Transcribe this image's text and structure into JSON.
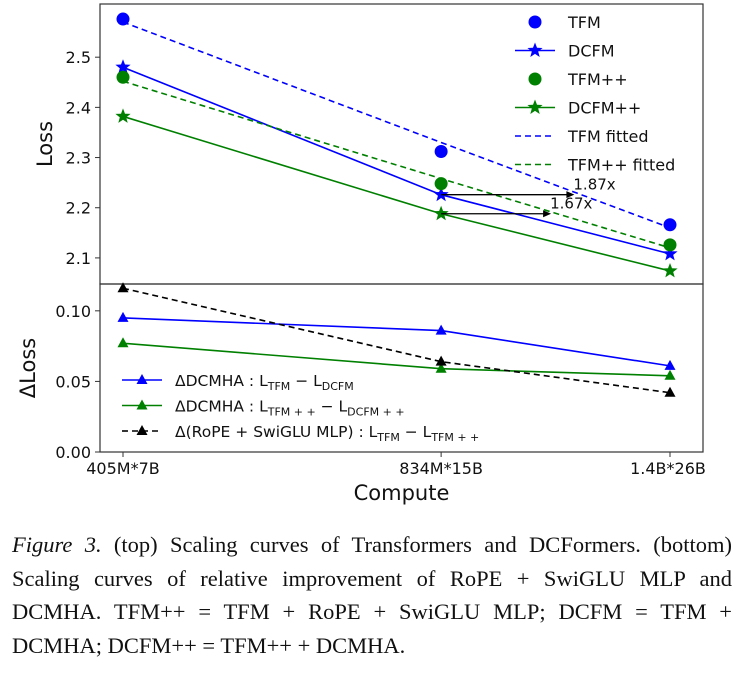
{
  "chart_data": [
    {
      "type": "line",
      "panel": "top",
      "ylabel": "Loss",
      "ylim": [
        2.048,
        2.606
      ],
      "yticks": [
        2.1,
        2.2,
        2.3,
        2.4,
        2.5
      ],
      "xscale": "log",
      "x": [
        2.835e+18,
        1.251e+19,
        3.64e+19
      ],
      "xticklabels": [
        "405M*7B",
        "834M*15B",
        "1.4B*26B"
      ],
      "legend": "top-right",
      "grid": false,
      "series": [
        {
          "name": "TFM",
          "color": "#0000ff",
          "marker": "circle",
          "line": "none",
          "values": [
            2.576,
            2.312,
            2.166
          ]
        },
        {
          "name": "DCFM",
          "color": "#0000ff",
          "marker": "star",
          "line": "solid",
          "values": [
            2.48,
            2.226,
            2.108
          ]
        },
        {
          "name": "TFM++",
          "color": "#008000",
          "marker": "circle",
          "line": "none",
          "values": [
            2.46,
            2.248,
            2.126
          ]
        },
        {
          "name": "DCFM++",
          "color": "#008000",
          "marker": "star",
          "line": "solid",
          "values": [
            2.382,
            2.188,
            2.074
          ]
        },
        {
          "name": "TFM fitted",
          "color": "#0000ff",
          "marker": "none",
          "line": "dashed",
          "values": [
            2.57,
            2.33,
            2.16
          ]
        },
        {
          "name": "TFM++ fitted",
          "color": "#008000",
          "marker": "none",
          "line": "dashed",
          "values": [
            2.452,
            2.258,
            2.12
          ]
        }
      ],
      "annotations": [
        {
          "text": "1.87x",
          "y": 2.226,
          "from_x": 1.251e+19,
          "to_x": 2.33e+19
        },
        {
          "text": "1.67x",
          "y": 2.188,
          "from_x": 1.251e+19,
          "to_x": 2.09e+19
        }
      ]
    },
    {
      "type": "line",
      "panel": "bottom",
      "ylabel": "ΔLoss",
      "xlabel": "Compute",
      "ylim": [
        0,
        0.119
      ],
      "yticks": [
        0.0,
        0.05,
        0.1
      ],
      "yticklabels": [
        "0.00",
        "0.05",
        "0.10"
      ],
      "xscale": "log",
      "x": [
        2.835e+18,
        1.251e+19,
        3.64e+19
      ],
      "xticklabels": [
        "405M*7B",
        "834M*15B",
        "1.4B*26B"
      ],
      "legend": "bottom-left",
      "grid": false,
      "series": [
        {
          "name": [
            "ΔDCMHA : L",
            "TFM",
            " − L",
            "DCFM"
          ],
          "color": "#0000ff",
          "marker": "triangle",
          "line": "solid",
          "values": [
            0.095,
            0.086,
            0.061
          ]
        },
        {
          "name": [
            "ΔDCMHA : L",
            "TFM + +",
            " − L",
            "DCFM + +"
          ],
          "color": "#008000",
          "marker": "triangle",
          "line": "solid",
          "values": [
            0.077,
            0.059,
            0.054
          ]
        },
        {
          "name": [
            "Δ(RoPE + SwiGLU MLP) : L",
            "TFM",
            " − L",
            "TFM + +"
          ],
          "color": "#000000",
          "marker": "triangle",
          "line": "dashed",
          "values": [
            0.116,
            0.064,
            0.042
          ]
        }
      ]
    }
  ],
  "caption": {
    "label": "Figure 3.",
    "text": " (top) Scaling curves of Transformers and DCFormers. (bottom) Scaling curves of relative improvement of RoPE + SwiGLU MLP and DCMHA. TFM++ = TFM + RoPE + SwiGLU MLP; DCFM = TFM + DCMHA; DCFM++ = TFM++ + DCMHA."
  }
}
